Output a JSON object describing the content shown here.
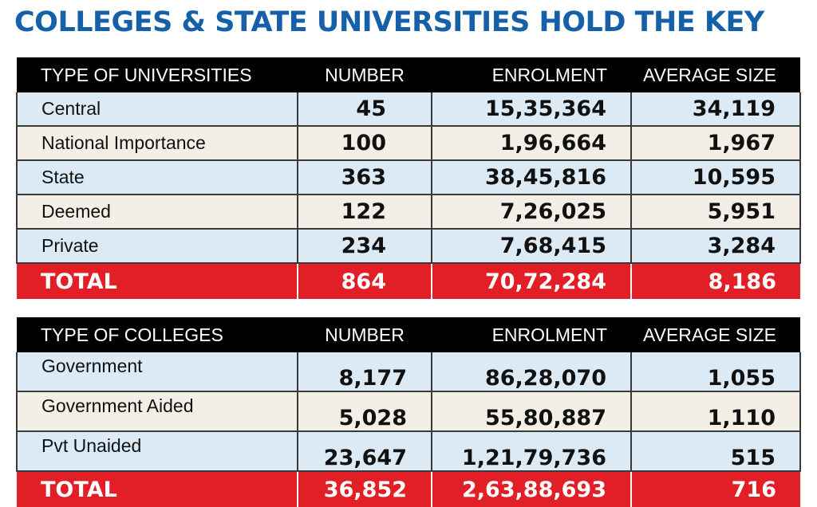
{
  "title": "COLLEGES & STATE UNIVERSITIES HOLD THE KEY",
  "universities": {
    "headers": [
      "TYPE OF UNIVERSITIES",
      "NUMBER",
      "ENROLMENT",
      "AVERAGE SIZE"
    ],
    "rows": [
      [
        "Central",
        "45",
        "15,35,364",
        "34,119"
      ],
      [
        "National Importance",
        "100",
        "1,96,664",
        "1,967"
      ],
      [
        "State",
        "363",
        "38,45,816",
        "10,595"
      ],
      [
        "Deemed",
        "122",
        "7,26,025",
        "5,951"
      ],
      [
        "Private",
        "234",
        "7,68,415",
        "3,284"
      ]
    ],
    "total": [
      "TOTAL",
      "864",
      "70,72,284",
      "8,186"
    ]
  },
  "colleges": {
    "headers": [
      "TYPE OF COLLEGES",
      "NUMBER",
      "ENROLMENT",
      "AVERAGE SIZE"
    ],
    "rows": [
      [
        "Government",
        "8,177",
        "86,28,070",
        "1,055"
      ],
      [
        "Government Aided",
        "5,028",
        "55,80,887",
        "1,110"
      ],
      [
        "Pvt Unaided",
        "23,647",
        "1,21,79,736",
        "515"
      ]
    ],
    "total": [
      "TOTAL",
      "36,852",
      "2,63,88,693",
      "716"
    ]
  },
  "colors": {
    "title": "#1560a8",
    "header_bg": "#000000",
    "total_bg": "#e21f26",
    "row_blue": "#dceaf6",
    "row_cream": "#f4efe6"
  }
}
